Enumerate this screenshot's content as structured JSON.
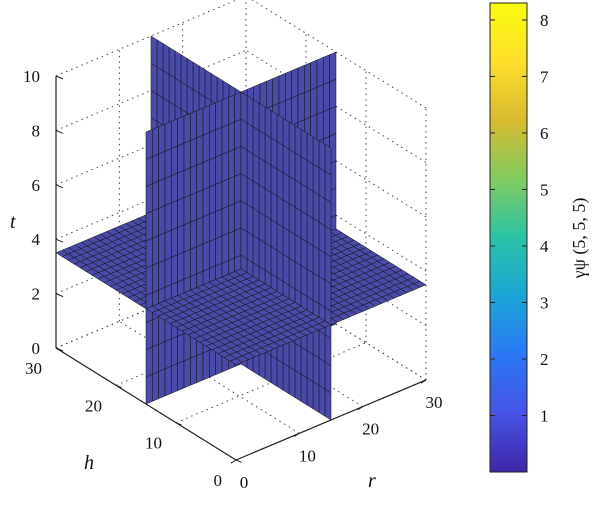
{
  "chart_data": {
    "type": "volumetric-slice",
    "title": "",
    "xlabel": "r",
    "ylabel": "h",
    "zlabel": "t",
    "x_ticks": [
      "0",
      "10",
      "20",
      "30"
    ],
    "y_ticks": [
      "0",
      "10",
      "20",
      "30"
    ],
    "z_ticks": [
      "0",
      "2",
      "4",
      "6",
      "8",
      "10"
    ],
    "xlim": [
      0,
      30
    ],
    "ylim": [
      0,
      30
    ],
    "zlim": [
      0,
      10
    ],
    "grid": true,
    "slices": [
      {
        "plane": "r",
        "at": 15,
        "value": 0.5
      },
      {
        "plane": "h",
        "at": 15,
        "value": 0.5
      },
      {
        "plane": "t",
        "at": 3.5,
        "value": 0.5
      }
    ],
    "colorbar": {
      "label": "γψ (5, 5, 5)",
      "ticks": [
        "1",
        "2",
        "3",
        "4",
        "5",
        "6",
        "7",
        "8"
      ],
      "range": [
        0,
        8.3
      ],
      "colormap": [
        "#3e26a8",
        "#4653e6",
        "#2a78f4",
        "#1ba5d6",
        "#2ac3a7",
        "#81cb5f",
        "#d8ba2f",
        "#fedf2a",
        "#f9fb0e"
      ]
    },
    "surface_color": "#4a4aa8",
    "edge_color": "#111111"
  }
}
